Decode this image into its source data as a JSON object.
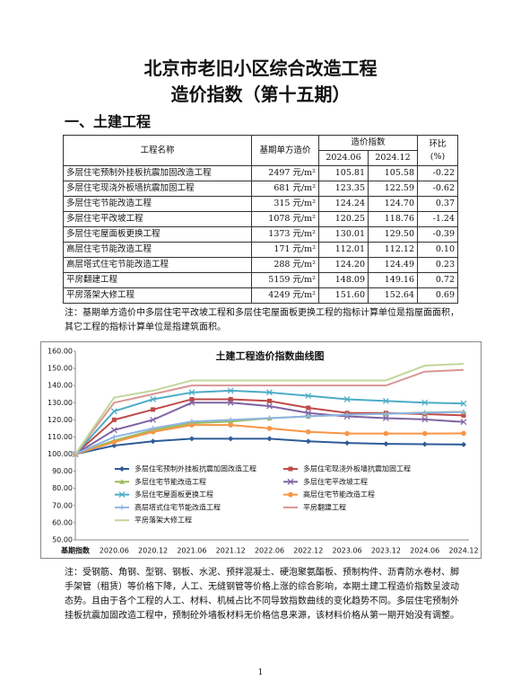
{
  "header": {
    "title_line1": "北京市老旧小区综合改造工程",
    "title_line2": "造价指数（第十五期）"
  },
  "section": "一、土建工程",
  "table": {
    "col_name": "工程名称",
    "col_base": "基期单方造价",
    "col_index": "造价指数",
    "col_change": "环比",
    "col_change_unit": "(%)",
    "periods": [
      "2024.06",
      "2024.12"
    ],
    "rows": [
      [
        "多层住宅预制外挂板抗震加固改造工程",
        "2497 元/m²",
        "105.81",
        "105.58",
        "-0.22"
      ],
      [
        "多层住宅现浇外板墙抗震加固工程",
        "681 元/m²",
        "123.35",
        "122.59",
        "-0.62"
      ],
      [
        "多层住宅节能改造工程",
        "315 元/m²",
        "124.24",
        "124.70",
        "0.37"
      ],
      [
        "多层住宅平改坡工程",
        "1078 元/m²",
        "120.25",
        "118.76",
        "-1.24"
      ],
      [
        "多层住宅屋面板更换工程",
        "1373 元/m²",
        "130.01",
        "129.50",
        "-0.39"
      ],
      [
        "高层住宅节能改造工程",
        "171 元/m²",
        "112.01",
        "112.12",
        "0.10"
      ],
      [
        "高层塔式住宅节能改造工程",
        "288 元/m²",
        "124.20",
        "124.49",
        "0.23"
      ],
      [
        "平房翻建工程",
        "5159 元/m²",
        "148.09",
        "149.16",
        "0.72"
      ],
      [
        "平房落架大修工程",
        "4249 元/m²",
        "151.60",
        "152.64",
        "0.69"
      ]
    ]
  },
  "note1": "注：基期单方造价中多层住宅平改坡工程和多层住宅屋面板更换工程的指标计算单位是指屋面面积，其它工程的指标计算单位是指建筑面积。",
  "chart_data": {
    "type": "line",
    "title": "土建工程造价指数曲线图",
    "categories": [
      "基期指数",
      "2020.06",
      "2020.12",
      "2021.06",
      "2021.12",
      "2022.06",
      "2022.12",
      "2023.06",
      "2023.12",
      "2024.06",
      "2024.12"
    ],
    "ylim": [
      50,
      160
    ],
    "yticks": [
      {
        "value": 50,
        "label": "50.00"
      },
      {
        "value": 60,
        "label": "60.00"
      },
      {
        "value": 70,
        "label": "70.00"
      },
      {
        "value": 80,
        "label": "80.00"
      },
      {
        "value": 90,
        "label": "90.00"
      },
      {
        "value": 100,
        "label": "100.00"
      },
      {
        "value": 110,
        "label": "110.00"
      },
      {
        "value": 120,
        "label": "120.00"
      },
      {
        "value": 130,
        "label": "130.00"
      },
      {
        "value": 140,
        "label": "140.00"
      },
      {
        "value": 150,
        "label": "150.00"
      },
      {
        "value": 160,
        "label": "160.00"
      }
    ],
    "grid": false,
    "series": [
      {
        "name": "多层住宅预制外挂板抗震加固改造工程",
        "color": "#2f5c98",
        "marker": "diamond",
        "values": [
          100,
          105,
          107.5,
          109,
          109,
          109,
          107.5,
          106.5,
          106,
          105.81,
          105.58
        ]
      },
      {
        "name": "多层住宅现浇外板墙抗震加固工程",
        "color": "#be4b48",
        "marker": "square",
        "values": [
          100,
          120,
          126,
          132,
          132,
          131,
          127,
          124,
          124,
          123.35,
          122.59
        ]
      },
      {
        "name": "多层住宅节能改造工程",
        "color": "#9bbb59",
        "marker": "triangle",
        "values": [
          100,
          108,
          114,
          118,
          119,
          121,
          122,
          123,
          123.5,
          124.24,
          124.7
        ]
      },
      {
        "name": "多层住宅平改坡工程",
        "color": "#7f63a3",
        "marker": "x",
        "values": [
          100,
          114,
          120,
          130,
          130,
          128,
          124,
          122,
          121,
          120.25,
          118.76
        ]
      },
      {
        "name": "多层住宅屋面板更换工程",
        "color": "#4bacc6",
        "marker": "x",
        "values": [
          100,
          125,
          132,
          136,
          137,
          136,
          134,
          132,
          131,
          130.01,
          129.5
        ]
      },
      {
        "name": "高层住宅节能改造工程",
        "color": "#f79646",
        "marker": "circle",
        "values": [
          100,
          107,
          113,
          117,
          117,
          115,
          113,
          112,
          112,
          112.01,
          112.12
        ]
      },
      {
        "name": "高层塔式住宅节能改造工程",
        "color": "#8eb4e3",
        "marker": "plus",
        "values": [
          100,
          110,
          115,
          119,
          120,
          121,
          122,
          123,
          123.5,
          124.2,
          124.49
        ]
      },
      {
        "name": "平房翻建工程",
        "color": "#d99694",
        "marker": "none",
        "values": [
          100,
          130,
          135,
          140,
          140,
          140,
          140,
          140,
          140,
          148.09,
          149.16
        ]
      },
      {
        "name": "平房落架大修工程",
        "color": "#c3d69b",
        "marker": "none",
        "values": [
          100,
          133,
          137,
          143,
          143,
          143,
          143,
          143,
          143,
          151.6,
          152.64
        ]
      }
    ]
  },
  "note2": "注：受钢筋、角钢、型钢、钢板、水泥、预拌混凝土、硬泡聚氨酯板、预制构件、沥青防水卷材、脚手架管（租赁）等价格下降，人工、无缝钢管等价格上涨的综合影响，本期土建工程造价指数呈波动态势。且由于各个工程的人工、材料、机械占比不同导致指数曲线的变化趋势不同。多层住宅预制外挂板抗震加固改造工程中，预制砼外墙板材料无价格信息来源，该材料价格从第一期开始没有调整。",
  "page_number": "1"
}
